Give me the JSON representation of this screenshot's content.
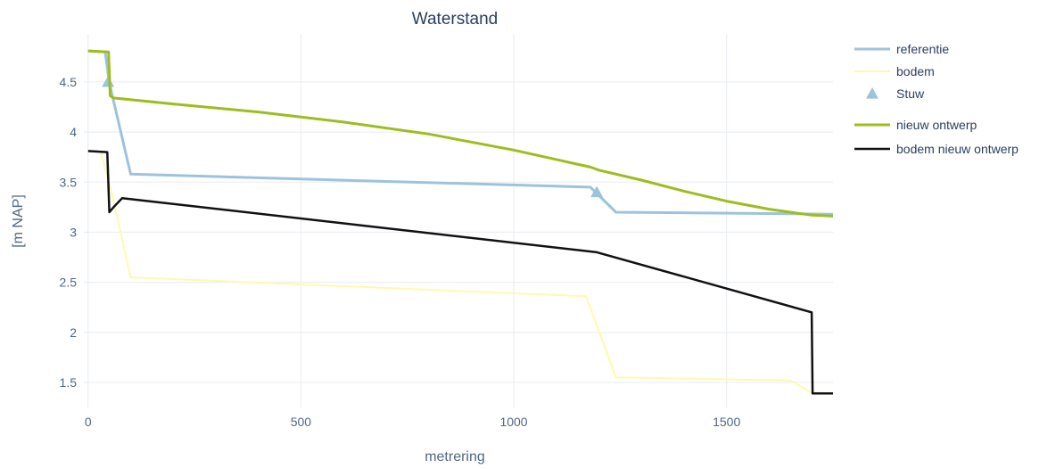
{
  "chart_data": {
    "type": "line",
    "title": "Waterstand",
    "xlabel": "metrering",
    "ylabel": "[m NAP]",
    "xlim": [
      -10,
      1750
    ],
    "ylim": [
      1.25,
      4.98
    ],
    "xticks": [
      0,
      500,
      1000,
      1500
    ],
    "yticks": [
      1.5,
      2,
      2.5,
      3,
      3.5,
      4,
      4.5
    ],
    "xtick_labels": [
      "0",
      "500",
      "1000",
      "1500"
    ],
    "ytick_labels": [
      "1.5",
      "2",
      "2.5",
      "3",
      "3.5",
      "4",
      "4.5"
    ],
    "grid": true,
    "legend_position": "right",
    "series": [
      {
        "name": "referentie",
        "mode": "line",
        "color": "#9dc3dc",
        "width": 3,
        "x": [
          0,
          40,
          50,
          100,
          1180,
          1240,
          1750
        ],
        "y": [
          4.81,
          4.8,
          4.49,
          3.58,
          3.45,
          3.2,
          3.18
        ]
      },
      {
        "name": "bodem",
        "mode": "line",
        "color": "#fdfaae",
        "width": 2,
        "x": [
          30,
          55,
          100,
          1170,
          1240,
          1650,
          1700,
          1750
        ],
        "y": [
          3.8,
          3.4,
          2.55,
          2.36,
          1.55,
          1.52,
          1.4,
          1.39
        ]
      },
      {
        "name": "Stuw",
        "mode": "marker",
        "marker": "triangle-up",
        "color": "#9dc3dc",
        "x": [
          47,
          1195
        ],
        "y": [
          4.5,
          3.4
        ]
      },
      {
        "name": "nieuw ontwerp",
        "mode": "line",
        "color": "#9dbd1e",
        "width": 3,
        "x": [
          0,
          45,
          48,
          52,
          60,
          200,
          400,
          600,
          800,
          1000,
          1180,
          1200,
          1300,
          1400,
          1500,
          1600,
          1700,
          1750
        ],
        "y": [
          4.81,
          4.8,
          4.8,
          4.36,
          4.34,
          4.28,
          4.2,
          4.1,
          3.98,
          3.82,
          3.65,
          3.62,
          3.52,
          3.41,
          3.31,
          3.23,
          3.17,
          3.16
        ]
      },
      {
        "name": "bodem nieuw ontwerp",
        "mode": "line",
        "color": "#111111",
        "width": 2.5,
        "x": [
          0,
          45,
          50,
          60,
          80,
          1195,
          1700,
          1702,
          1750
        ],
        "y": [
          3.81,
          3.8,
          3.2,
          3.25,
          3.34,
          2.8,
          2.2,
          1.39,
          1.39
        ]
      }
    ]
  }
}
